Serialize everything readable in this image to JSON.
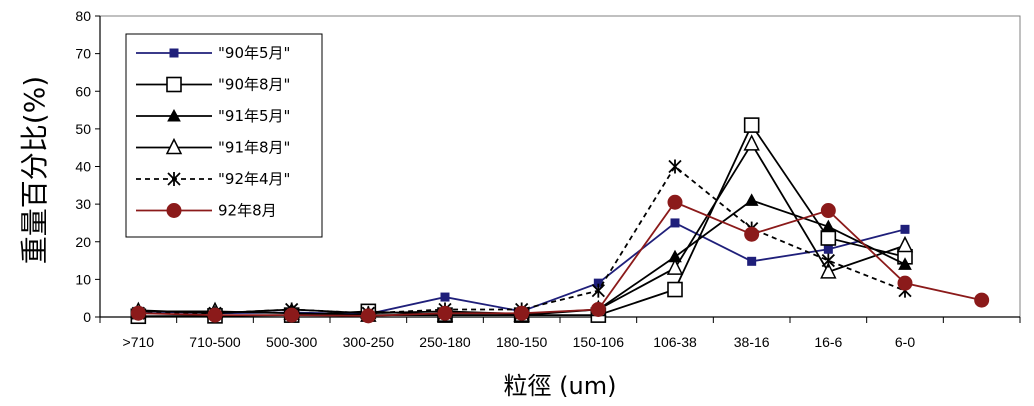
{
  "chart_data": {
    "type": "line",
    "title": "",
    "xlabel": "粒徑 (um)",
    "ylabel": "重量百分比(%)",
    "ylim": [
      0,
      80
    ],
    "yticks": [
      0,
      10,
      20,
      30,
      40,
      50,
      60,
      70,
      80
    ],
    "categories": [
      ">710",
      "710-500",
      "500-300",
      "300-250",
      "250-180",
      "180-150",
      "150-106",
      "106-38",
      "38-16",
      "16-6",
      "6-0",
      ""
    ],
    "legend_position": "top-left",
    "grid": false,
    "series": [
      {
        "name": "\"90年5月\"",
        "color": "#1f1f7a",
        "marker": "filled-square",
        "dash": false,
        "values": [
          1.5,
          1.0,
          1.2,
          0.8,
          5.3,
          1.5,
          9.0,
          25.0,
          14.8,
          18.0,
          23.3,
          null
        ]
      },
      {
        "name": "\"90年8月\"",
        "color": "#000000",
        "marker": "open-square",
        "dash": false,
        "values": [
          0.2,
          0.3,
          0.5,
          1.5,
          0.5,
          0.5,
          0.5,
          7.3,
          51.0,
          21.0,
          16.0,
          null
        ]
      },
      {
        "name": "\"91年5月\"",
        "color": "#000000",
        "marker": "filled-triangle",
        "dash": false,
        "values": [
          1.8,
          1.0,
          2.0,
          1.0,
          1.5,
          0.8,
          2.0,
          16.0,
          31.0,
          24.0,
          14.0,
          null
        ]
      },
      {
        "name": "\"91年8月\"",
        "color": "#000000",
        "marker": "open-triangle",
        "dash": false,
        "values": [
          1.5,
          1.5,
          1.0,
          0.5,
          0.5,
          0.5,
          2.0,
          13.0,
          46.0,
          12.0,
          19.0,
          null
        ]
      },
      {
        "name": "\"92年4月\"",
        "color": "#000000",
        "marker": "star",
        "dash": true,
        "values": [
          1.0,
          1.0,
          2.0,
          1.0,
          2.0,
          2.0,
          7.0,
          40.0,
          23.5,
          15.0,
          7.0,
          null
        ]
      },
      {
        "name": "92年8月",
        "color": "#8b1a1a",
        "marker": "filled-circle",
        "dash": false,
        "values": [
          1.0,
          0.5,
          0.5,
          0.3,
          1.0,
          1.0,
          2.0,
          30.5,
          22.0,
          28.3,
          9.0,
          4.5
        ]
      }
    ]
  }
}
